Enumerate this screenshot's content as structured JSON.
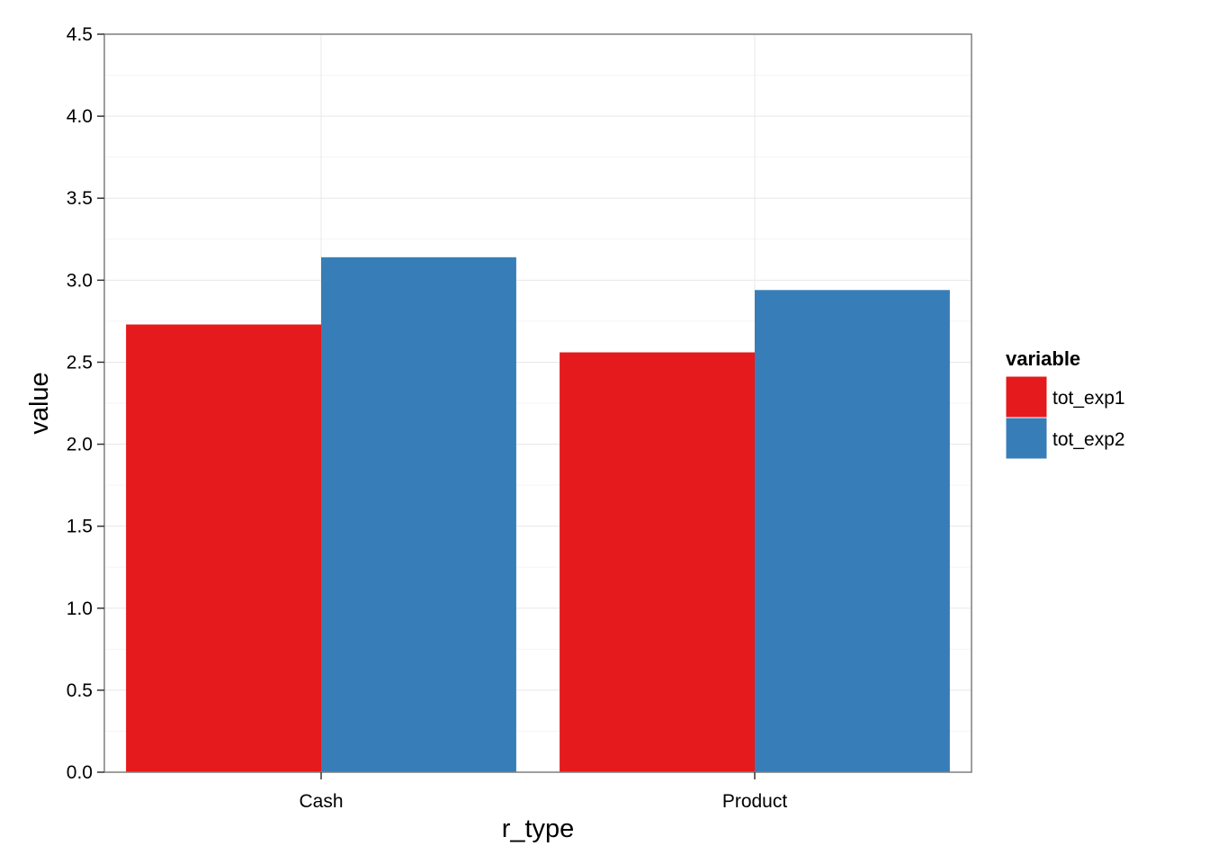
{
  "chart_data": {
    "type": "bar",
    "title": "",
    "xlabel": "r_type",
    "ylabel": "value",
    "categories": [
      "Cash",
      "Product"
    ],
    "series": [
      {
        "name": "tot_exp1",
        "values": [
          2.73,
          2.56
        ],
        "color": "#e41a1c"
      },
      {
        "name": "tot_exp2",
        "values": [
          3.14,
          2.94
        ],
        "color": "#377eb8"
      }
    ],
    "ylim": [
      0,
      4.5
    ],
    "yticks": [
      0,
      0.5,
      1,
      1.5,
      2,
      2.5,
      3,
      3.5,
      4,
      4.5
    ],
    "ytick_labels": [
      "0.0",
      "0.5",
      "1.0",
      "1.5",
      "2.0",
      "2.5",
      "3.0",
      "3.5",
      "4.0",
      "4.5"
    ],
    "grid": true,
    "legend": {
      "title": "variable",
      "placement": "right"
    }
  }
}
